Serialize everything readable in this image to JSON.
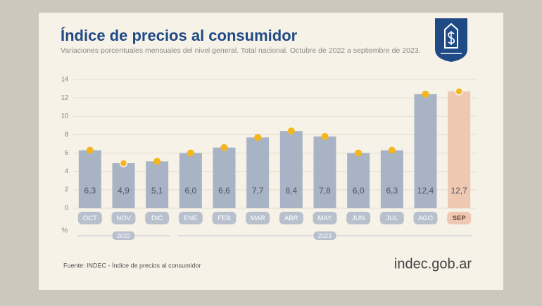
{
  "chart_data": {
    "type": "bar",
    "title": "Índice de precios al consumidor",
    "subtitle": "Variaciones porcentuales mensuales del nivel general. Total nacional. Octubre de 2022 a septiembre de 2023.",
    "y_unit": "%",
    "categories": [
      "OCT",
      "NOV",
      "DIC",
      "ENE",
      "FEB",
      "MAR",
      "ABR",
      "MAY",
      "JUN",
      "JUL",
      "AGO",
      "SEP"
    ],
    "values": [
      6.3,
      4.9,
      5.1,
      6.0,
      6.6,
      7.7,
      8.4,
      7.8,
      6.0,
      6.3,
      12.4,
      12.7
    ],
    "value_labels": [
      "6,3",
      "4,9",
      "5,1",
      "6,0",
      "6,6",
      "7,7",
      "8,4",
      "7,8",
      "6,0",
      "6,3",
      "12,4",
      "12,7"
    ],
    "colors": [
      "#a8b3c6",
      "#a8b3c6",
      "#a8b3c6",
      "#a8b3c6",
      "#a8b3c6",
      "#a8b3c6",
      "#a8b3c6",
      "#a8b3c6",
      "#a8b3c6",
      "#a8b3c6",
      "#a8b3c6",
      "#efc8b2"
    ],
    "marker_color": "#f3b61f",
    "x_groups": [
      {
        "label": "2022",
        "span": 3
      },
      {
        "label": "2023",
        "span": 9
      }
    ],
    "ylim": [
      0,
      14
    ],
    "yticks": [
      0,
      2,
      4,
      6,
      8,
      10,
      12,
      14
    ],
    "grid": true,
    "source": "Fuente: INDEC - Índice de precios al consumidor",
    "brand": "indec.gob.ar"
  }
}
